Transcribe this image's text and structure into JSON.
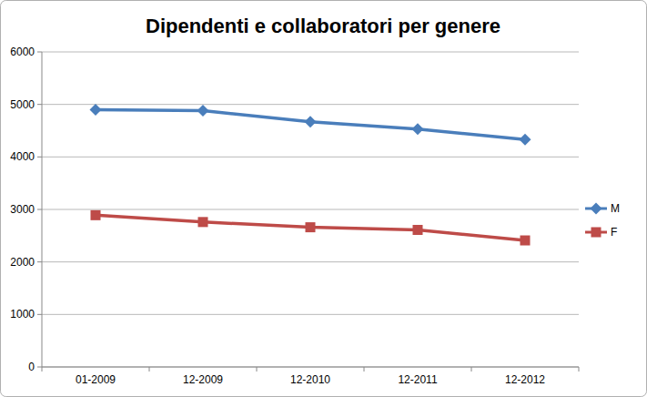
{
  "chart_data": {
    "type": "line",
    "title": "Dipendenti e collaboratori per genere",
    "categories": [
      "01-2009",
      "12-2009",
      "12-2010",
      "12-2011",
      "12-2012"
    ],
    "series": [
      {
        "name": "M",
        "color": "#4a7ebb",
        "marker": "diamond",
        "values": [
          4900,
          4880,
          4670,
          4530,
          4330
        ]
      },
      {
        "name": "F",
        "color": "#be4b48",
        "marker": "square",
        "values": [
          2890,
          2760,
          2660,
          2610,
          2410
        ]
      }
    ],
    "ylim": [
      0,
      6000
    ],
    "yticks": [
      0,
      1000,
      2000,
      3000,
      4000,
      5000,
      6000
    ],
    "grid": true,
    "legend": "right"
  }
}
